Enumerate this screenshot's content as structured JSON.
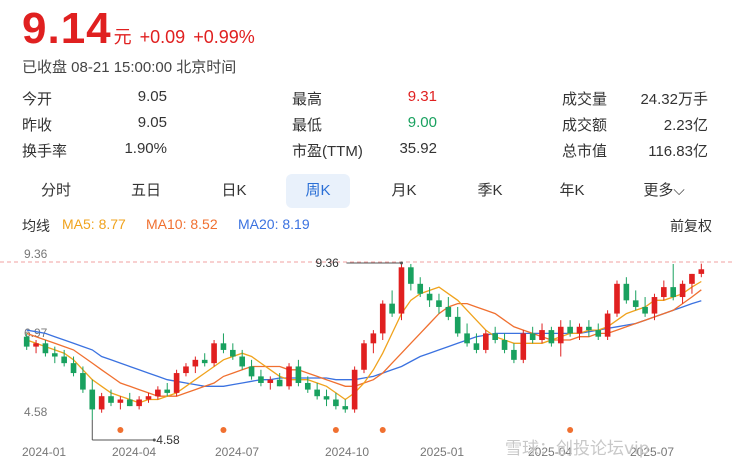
{
  "quote": {
    "price": "9.14",
    "unit": "元",
    "change": "+0.09",
    "change_pct": "+0.99%",
    "status": "已收盘 08-21 15:00:00 北京时间"
  },
  "stats": {
    "open_label": "今开",
    "open": "9.05",
    "high_label": "最高",
    "high": "9.31",
    "volume_label": "成交量",
    "volume": "24.32万手",
    "prev_close_label": "昨收",
    "prev_close": "9.05",
    "low_label": "最低",
    "low": "9.00",
    "amount_label": "成交额",
    "amount": "2.23亿",
    "turnover_label": "换手率",
    "turnover": "1.90%",
    "pe_label": "市盈(TTM)",
    "pe": "35.92",
    "mcap_label": "总市值",
    "mcap": "116.83亿"
  },
  "tabs": [
    {
      "label": "分时"
    },
    {
      "label": "五日"
    },
    {
      "label": "日K"
    },
    {
      "label": "周K",
      "active": true
    },
    {
      "label": "月K"
    },
    {
      "label": "季K"
    },
    {
      "label": "年K"
    },
    {
      "label": "更多⌵"
    }
  ],
  "ma": {
    "label": "均线",
    "ma5": "MA5: 8.77",
    "ma10": "MA10: 8.52",
    "ma20": "MA20: 8.19",
    "adjust": "前复权"
  },
  "colors": {
    "up": "#e02020",
    "down": "#19a15f",
    "ma5": "#f0a31d",
    "ma10": "#f07030",
    "ma20": "#3b72e0",
    "active_tab": "#2a6fd6"
  },
  "chart_data": {
    "type": "candlestick",
    "max_label": "9.36",
    "min_label": "4.58",
    "y_ticks": [
      "9.36",
      "6.97",
      "4.58"
    ],
    "ylim": [
      4.58,
      9.36
    ],
    "x_labels": [
      "2024-01",
      "2024-04",
      "2024-07",
      "2024-10",
      "2025-01",
      "2025-04",
      "2025-07"
    ],
    "candles": [
      [
        7.1,
        7.2,
        6.7,
        6.8
      ],
      [
        6.8,
        7.0,
        6.6,
        6.9
      ],
      [
        6.9,
        7.0,
        6.5,
        6.6
      ],
      [
        6.6,
        6.8,
        6.3,
        6.5
      ],
      [
        6.5,
        6.7,
        6.2,
        6.3
      ],
      [
        6.3,
        6.5,
        5.9,
        6.0
      ],
      [
        6.0,
        6.2,
        5.4,
        5.5
      ],
      [
        5.5,
        5.8,
        4.58,
        4.9
      ],
      [
        4.9,
        5.4,
        4.8,
        5.3
      ],
      [
        5.3,
        5.5,
        5.0,
        5.1
      ],
      [
        5.1,
        5.3,
        4.9,
        5.2
      ],
      [
        5.2,
        5.4,
        5.0,
        5.0
      ],
      [
        5.0,
        5.3,
        4.9,
        5.2
      ],
      [
        5.2,
        5.4,
        5.1,
        5.3
      ],
      [
        5.3,
        5.6,
        5.2,
        5.5
      ],
      [
        5.5,
        5.7,
        5.3,
        5.4
      ],
      [
        5.4,
        6.1,
        5.3,
        6.0
      ],
      [
        6.0,
        6.3,
        5.9,
        6.2
      ],
      [
        6.2,
        6.5,
        6.0,
        6.4
      ],
      [
        6.4,
        6.6,
        6.2,
        6.3
      ],
      [
        6.3,
        7.0,
        6.2,
        6.9
      ],
      [
        6.9,
        7.2,
        6.6,
        6.7
      ],
      [
        6.7,
        6.9,
        6.4,
        6.5
      ],
      [
        6.5,
        6.7,
        6.1,
        6.2
      ],
      [
        6.2,
        6.4,
        5.8,
        5.9
      ],
      [
        5.9,
        6.1,
        5.6,
        5.7
      ],
      [
        5.7,
        5.9,
        5.5,
        5.8
      ],
      [
        5.8,
        6.0,
        5.6,
        5.6
      ],
      [
        5.6,
        6.3,
        5.5,
        6.2
      ],
      [
        6.2,
        6.4,
        5.6,
        5.7
      ],
      [
        5.7,
        5.9,
        5.4,
        5.5
      ],
      [
        5.5,
        5.7,
        5.2,
        5.3
      ],
      [
        5.3,
        5.5,
        5.0,
        5.2
      ],
      [
        5.2,
        5.4,
        4.9,
        5.0
      ],
      [
        5.0,
        5.2,
        4.8,
        4.9
      ],
      [
        4.9,
        6.2,
        4.8,
        6.1
      ],
      [
        6.1,
        7.0,
        6.0,
        6.9
      ],
      [
        6.9,
        7.3,
        6.6,
        7.2
      ],
      [
        7.2,
        8.2,
        7.0,
        8.1
      ],
      [
        8.1,
        8.5,
        7.7,
        7.8
      ],
      [
        7.8,
        9.36,
        7.6,
        9.2
      ],
      [
        9.2,
        9.3,
        8.5,
        8.7
      ],
      [
        8.7,
        8.9,
        8.3,
        8.4
      ],
      [
        8.4,
        8.6,
        8.0,
        8.2
      ],
      [
        8.2,
        8.4,
        7.8,
        8.0
      ],
      [
        8.0,
        8.3,
        7.6,
        7.7
      ],
      [
        7.7,
        8.0,
        7.1,
        7.2
      ],
      [
        7.2,
        7.5,
        6.8,
        6.9
      ],
      [
        6.9,
        7.2,
        6.6,
        6.7
      ],
      [
        6.7,
        7.3,
        6.6,
        7.2
      ],
      [
        7.2,
        7.4,
        6.9,
        7.0
      ],
      [
        7.0,
        7.2,
        6.6,
        6.7
      ],
      [
        6.7,
        6.9,
        6.3,
        6.4
      ],
      [
        6.4,
        7.3,
        6.3,
        7.2
      ],
      [
        7.2,
        7.4,
        6.9,
        7.0
      ],
      [
        7.0,
        7.5,
        6.9,
        7.3
      ],
      [
        7.3,
        7.4,
        6.8,
        6.9
      ],
      [
        6.9,
        7.6,
        6.5,
        7.4
      ],
      [
        7.4,
        7.6,
        7.1,
        7.2
      ],
      [
        7.2,
        7.5,
        7.0,
        7.4
      ],
      [
        7.4,
        7.6,
        7.1,
        7.3
      ],
      [
        7.3,
        7.5,
        7.0,
        7.1
      ],
      [
        7.1,
        7.9,
        7.0,
        7.8
      ],
      [
        7.8,
        8.8,
        7.7,
        8.7
      ],
      [
        8.7,
        8.9,
        8.1,
        8.2
      ],
      [
        8.2,
        8.5,
        7.9,
        8.0
      ],
      [
        8.0,
        8.3,
        7.7,
        7.8
      ],
      [
        7.8,
        8.4,
        7.6,
        8.3
      ],
      [
        8.3,
        8.8,
        8.2,
        8.6
      ],
      [
        8.6,
        9.3,
        8.2,
        8.3
      ],
      [
        8.3,
        8.8,
        8.1,
        8.7
      ],
      [
        8.7,
        9.0,
        8.4,
        9.0
      ],
      [
        9.0,
        9.31,
        8.9,
        9.14
      ]
    ],
    "ma5": [
      7.0,
      6.9,
      6.8,
      6.7,
      6.6,
      6.4,
      6.1,
      5.8,
      5.6,
      5.4,
      5.3,
      5.2,
      5.1,
      5.2,
      5.2,
      5.3,
      5.4,
      5.6,
      5.8,
      6.0,
      6.2,
      6.4,
      6.5,
      6.6,
      6.5,
      6.3,
      6.1,
      5.9,
      5.8,
      5.8,
      5.8,
      5.7,
      5.6,
      5.4,
      5.2,
      5.4,
      5.7,
      6.1,
      6.6,
      7.2,
      7.8,
      8.2,
      8.4,
      8.5,
      8.6,
      8.4,
      8.2,
      7.9,
      7.6,
      7.3,
      7.1,
      7.0,
      6.9,
      6.9,
      6.9,
      6.9,
      7.0,
      7.1,
      7.2,
      7.2,
      7.3,
      7.3,
      7.4,
      7.6,
      7.8,
      7.9,
      8.0,
      8.2,
      8.2,
      8.3,
      8.4,
      8.6,
      8.77
    ],
    "ma10": [
      7.2,
      7.1,
      7.0,
      6.9,
      6.8,
      6.7,
      6.5,
      6.3,
      6.1,
      5.9,
      5.7,
      5.6,
      5.5,
      5.4,
      5.3,
      5.3,
      5.3,
      5.4,
      5.5,
      5.6,
      5.7,
      5.9,
      6.0,
      6.1,
      6.2,
      6.2,
      6.2,
      6.2,
      6.1,
      6.1,
      6.0,
      5.9,
      5.8,
      5.7,
      5.6,
      5.6,
      5.7,
      5.8,
      6.0,
      6.3,
      6.6,
      6.9,
      7.2,
      7.5,
      7.8,
      8.0,
      8.1,
      8.1,
      8.0,
      7.9,
      7.8,
      7.6,
      7.4,
      7.3,
      7.2,
      7.1,
      7.0,
      7.0,
      7.0,
      7.1,
      7.1,
      7.2,
      7.2,
      7.3,
      7.4,
      7.5,
      7.6,
      7.7,
      7.8,
      7.9,
      8.1,
      8.3,
      8.52
    ],
    "ma20": [
      7.3,
      7.25,
      7.2,
      7.1,
      7.0,
      6.9,
      6.8,
      6.7,
      6.5,
      6.4,
      6.3,
      6.2,
      6.1,
      6.0,
      5.9,
      5.8,
      5.75,
      5.7,
      5.65,
      5.6,
      5.6,
      5.6,
      5.65,
      5.7,
      5.75,
      5.8,
      5.8,
      5.85,
      5.85,
      5.85,
      5.85,
      5.85,
      5.85,
      5.8,
      5.8,
      5.8,
      5.85,
      5.9,
      6.0,
      6.1,
      6.2,
      6.35,
      6.5,
      6.6,
      6.7,
      6.8,
      6.9,
      7.0,
      7.1,
      7.15,
      7.2,
      7.2,
      7.2,
      7.2,
      7.2,
      7.2,
      7.2,
      7.2,
      7.2,
      7.2,
      7.25,
      7.3,
      7.35,
      7.4,
      7.45,
      7.5,
      7.6,
      7.7,
      7.8,
      7.9,
      8.0,
      8.1,
      8.19
    ],
    "event_markers": [
      10,
      21,
      33,
      38,
      58
    ]
  },
  "watermark": "雪球：创投论坛vip"
}
